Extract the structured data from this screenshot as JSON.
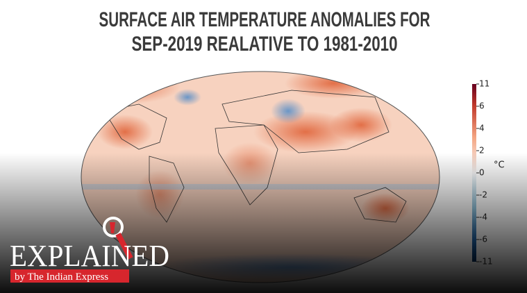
{
  "title": {
    "lines": [
      "SURFACE AIR TEMPERATURE ANOMALIES FOR",
      "SEP-2019 REALATIVE TO 1981-2010"
    ]
  },
  "colorbar": {
    "ticks": [
      11,
      6,
      4,
      2,
      0,
      -2,
      -4,
      -6,
      -11
    ],
    "unit": "°C"
  },
  "logo": {
    "wordmark": "EXPLAINED",
    "tagline": "by The Indian Express"
  }
}
